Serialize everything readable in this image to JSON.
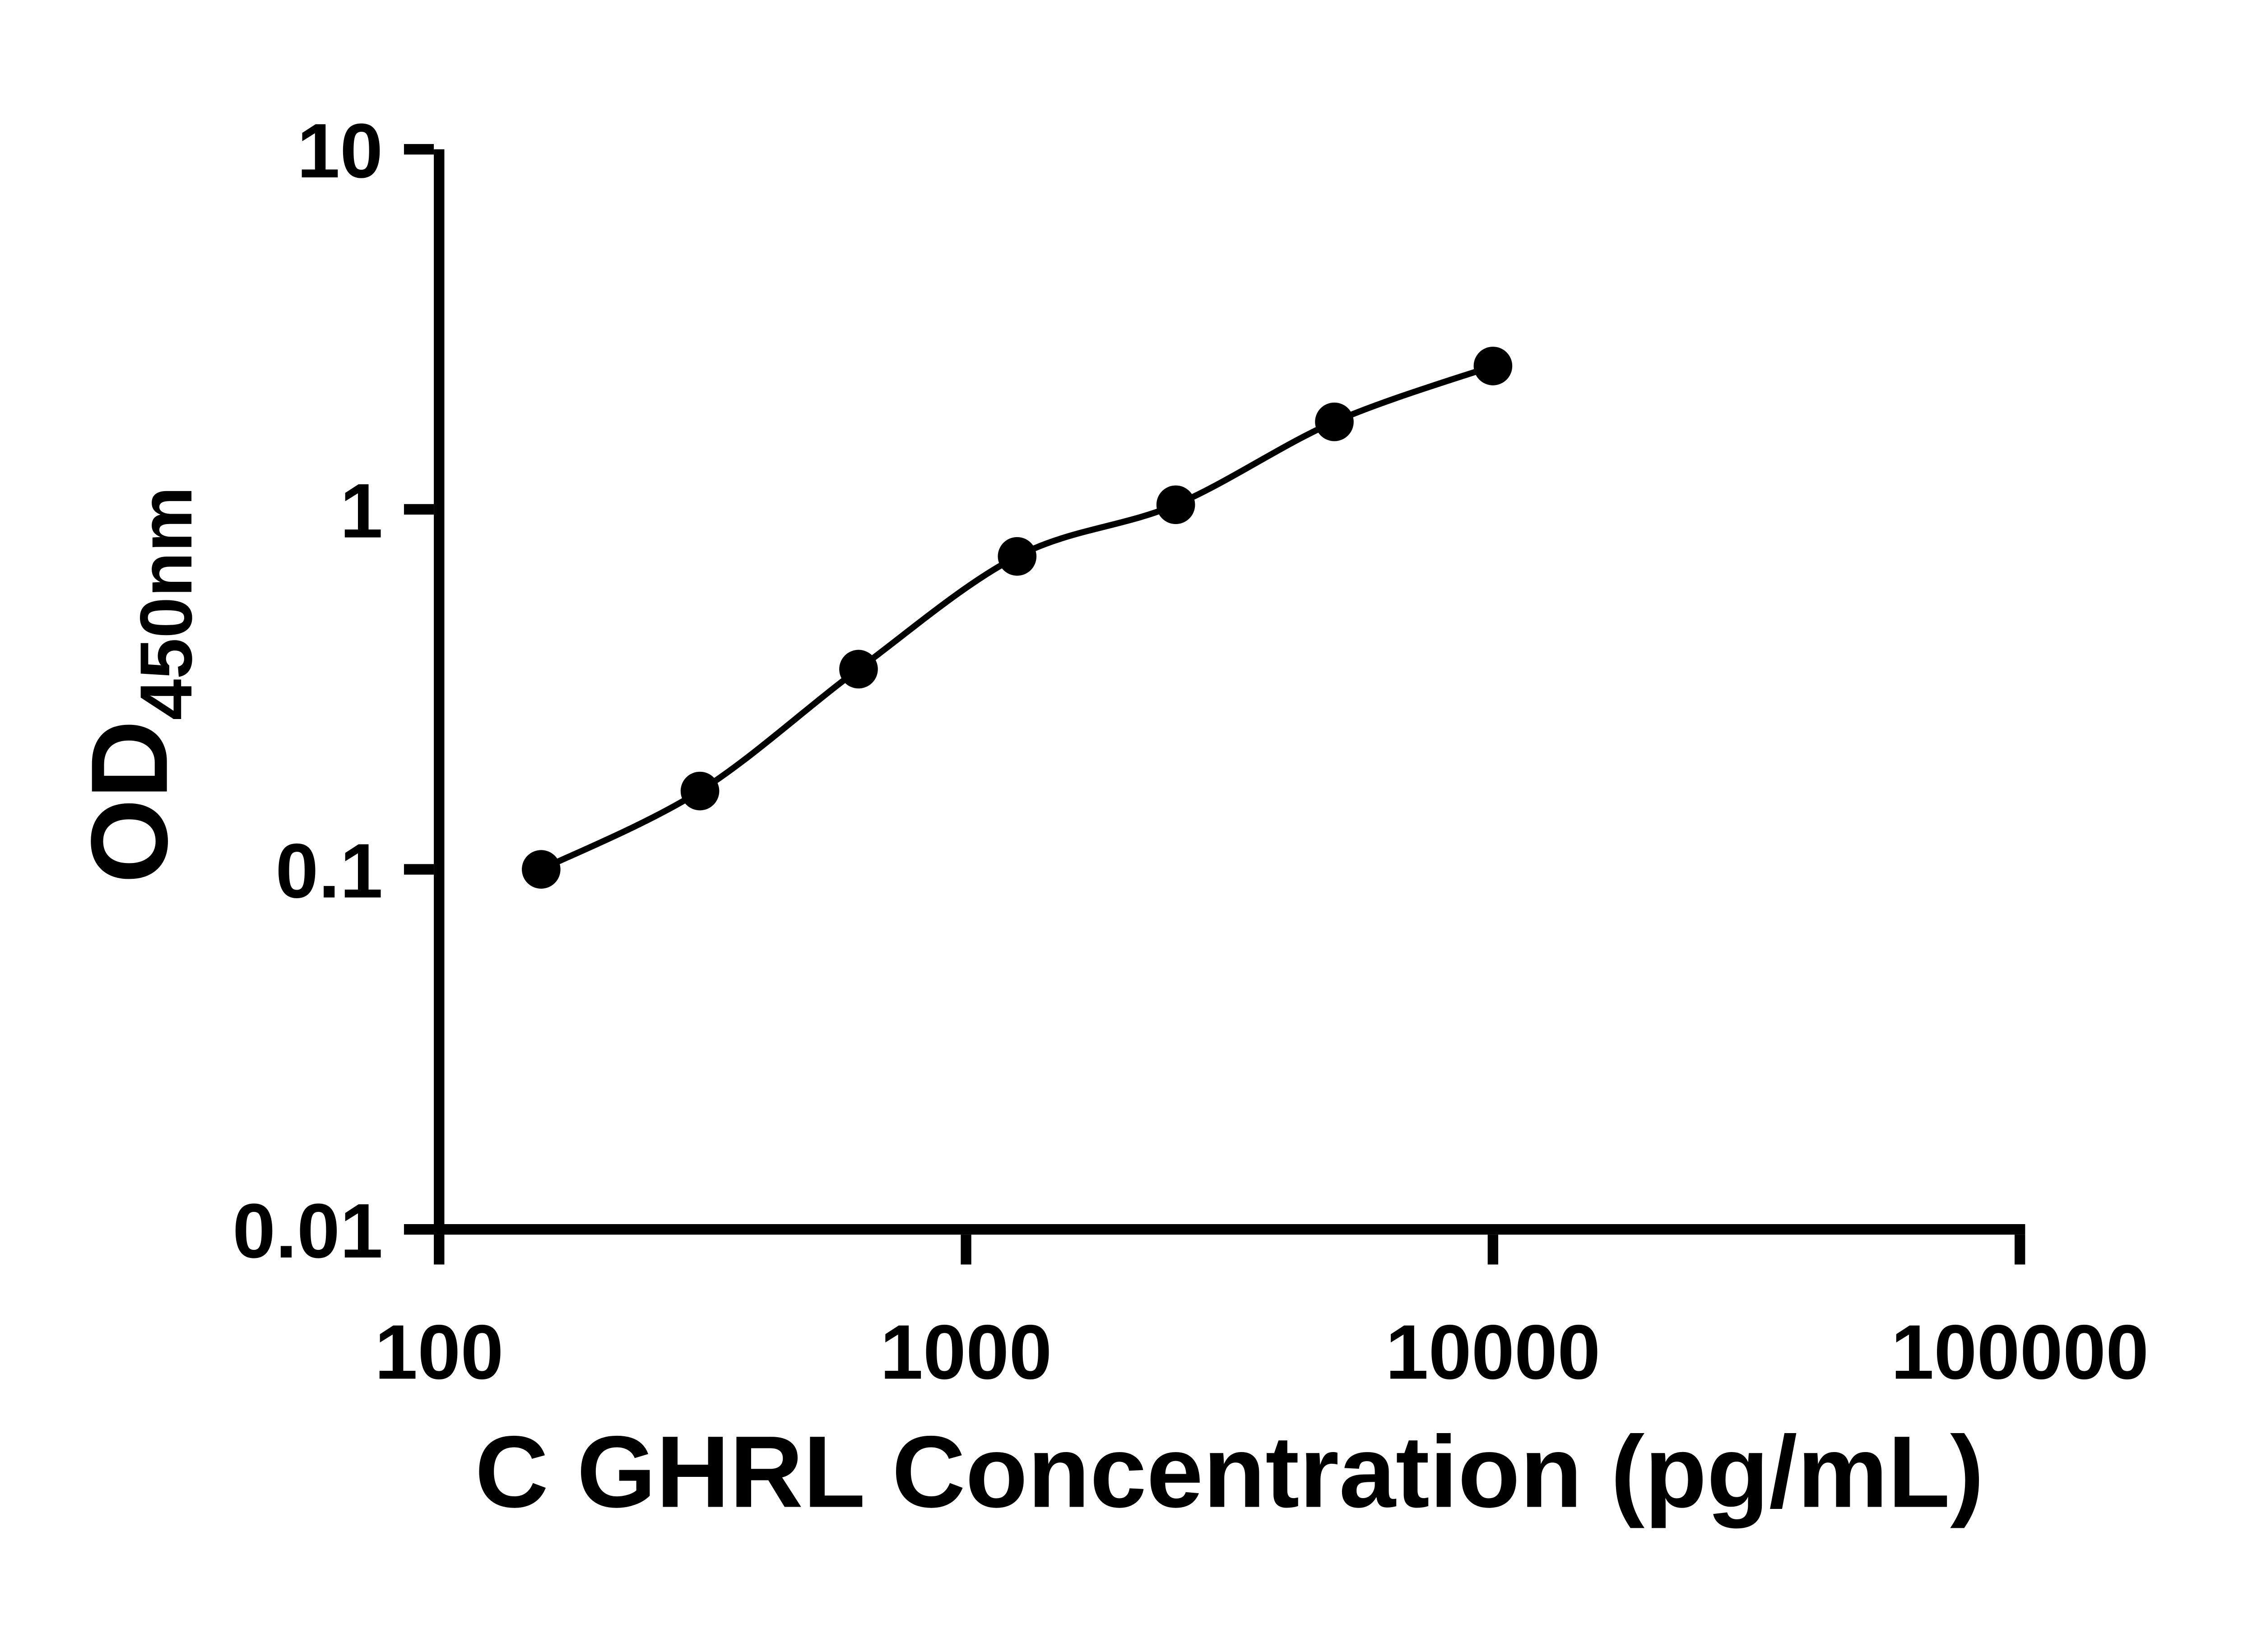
{
  "chart_data": {
    "type": "scatter",
    "title": "",
    "xlabel": "C GHRL Concentration (pg/mL)",
    "ylabel": "OD",
    "ylabel_sub": "450nm",
    "xscale": "log",
    "yscale": "log",
    "xlim": [
      100,
      100000
    ],
    "ylim": [
      0.01,
      10
    ],
    "grid": false,
    "legend": false,
    "background": "#ffffff",
    "marker_color": "#000000",
    "line_color": "#000000",
    "x_ticks": [
      {
        "value": 100,
        "label": "100"
      },
      {
        "value": 1000,
        "label": "1000"
      },
      {
        "value": 10000,
        "label": "10000"
      },
      {
        "value": 100000,
        "label": "100000"
      }
    ],
    "y_ticks": [
      {
        "value": 10,
        "label": "10"
      },
      {
        "value": 1,
        "label": "1"
      },
      {
        "value": 0.1,
        "label": "0.1"
      },
      {
        "value": 0.01,
        "label": "0.01"
      }
    ],
    "points": [
      {
        "x": 156.25,
        "y": 0.1
      },
      {
        "x": 312.5,
        "y": 0.165
      },
      {
        "x": 625,
        "y": 0.36
      },
      {
        "x": 1250,
        "y": 0.74
      },
      {
        "x": 2500,
        "y": 1.03
      },
      {
        "x": 5000,
        "y": 1.75
      },
      {
        "x": 10000,
        "y": 2.5
      }
    ],
    "curve": "smooth fit through points"
  }
}
